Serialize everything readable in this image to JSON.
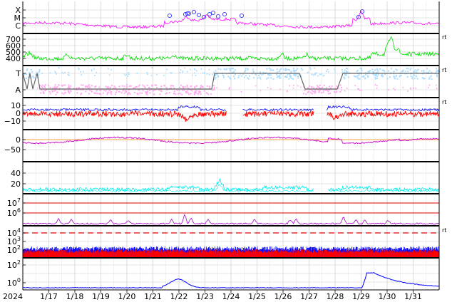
{
  "chart_data": [
    {
      "panel_id": "flare-class",
      "type": "line",
      "y_tick_labels": [
        "X",
        "M",
        "C"
      ],
      "series": [
        {
          "color": "#ff00ff"
        }
      ],
      "events_marked": 14
    },
    {
      "panel_id": "solar-wind-speed",
      "type": "line",
      "y_tick_labels": [
        "700",
        "600",
        "500",
        "400"
      ],
      "ylim": [
        300,
        750
      ],
      "series": [
        {
          "color": "#00dd00"
        }
      ]
    },
    {
      "panel_id": "imf-sector",
      "type": "scatter",
      "y_tick_labels": [
        "T",
        "A"
      ],
      "series": [
        {
          "color": "#aaddff"
        },
        {
          "color": "#ffaaee"
        },
        {
          "color": "#666666"
        }
      ]
    },
    {
      "panel_id": "imf-components",
      "type": "line",
      "y_tick_labels": [
        "10",
        "0",
        "−10"
      ],
      "ylim": [
        -15,
        15
      ],
      "series": [
        {
          "color": "#0000ff"
        },
        {
          "color": "#ff0000"
        }
      ]
    },
    {
      "panel_id": "dst-index",
      "type": "line",
      "y_tick_labels": [
        "0",
        "−50"
      ],
      "ylim": [
        -85,
        25
      ],
      "series": [
        {
          "color": "#cc00cc"
        },
        {
          "color": "#ff8800"
        }
      ]
    },
    {
      "panel_id": "ae-index",
      "type": "line",
      "y_tick_labels": [
        "40",
        "20"
      ],
      "ylim": [
        0,
        50
      ],
      "series": [
        {
          "color": "#00eeee"
        }
      ]
    },
    {
      "panel_id": "electron-flux",
      "type": "line",
      "y_tick_labels": [
        "10^7",
        "10^6"
      ],
      "log_scale": true,
      "series": [
        {
          "color": "#aa00cc"
        },
        {
          "color": "#cc0000"
        }
      ]
    },
    {
      "panel_id": "proton-flux-high",
      "type": "area",
      "y_tick_labels": [
        "10^4",
        "10^3",
        "10^2"
      ],
      "log_scale": true,
      "series": [
        {
          "color": "#0000ff"
        },
        {
          "color": "#ff0000"
        }
      ]
    },
    {
      "panel_id": "proton-flux-low",
      "type": "line",
      "y_tick_labels": [
        "10^2",
        "10^0"
      ],
      "log_scale": true,
      "series": [
        {
          "color": "#0000ff"
        }
      ]
    }
  ],
  "x_axis": {
    "year": "2024",
    "date_labels": [
      "1/17",
      "1/18",
      "1/19",
      "1/20",
      "1/21",
      "1/22",
      "1/23",
      "1/24",
      "1/25",
      "1/26",
      "1/27",
      "1/28",
      "1/29",
      "1/30",
      "1/31"
    ]
  },
  "right_edge_label": "rt",
  "colors": {
    "grid": "#cccccc",
    "border": "#000000",
    "threshold": "#dd0000"
  }
}
